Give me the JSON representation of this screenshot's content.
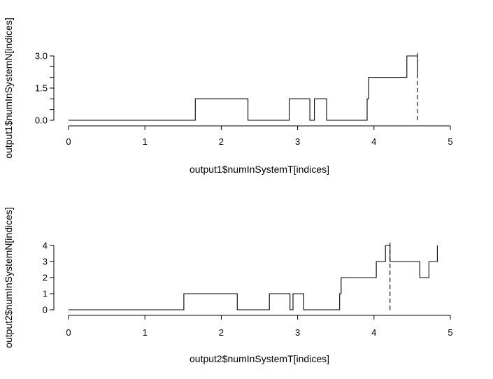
{
  "chart_data": [
    {
      "type": "line",
      "step": true,
      "xlabel": "output1$numInSystemT[indices]",
      "ylabel": "output1$numInSystemN[indices]",
      "xlim": [
        0,
        5
      ],
      "ylim": [
        0,
        3
      ],
      "x_ticks": [
        "0",
        "1",
        "2",
        "3",
        "4",
        "5"
      ],
      "y_ticks": [
        "0.0",
        "1.5",
        "3.0"
      ],
      "y_ticks_unlabeled": [
        0.5,
        1,
        2,
        2.5
      ],
      "grid": false,
      "legend": "none",
      "series": [
        {
          "points": [
            [
              0,
              0
            ],
            [
              1.66,
              0
            ],
            [
              1.66,
              1
            ],
            [
              2.35,
              1
            ],
            [
              2.35,
              0
            ],
            [
              2.89,
              0
            ],
            [
              2.89,
              1
            ],
            [
              3.16,
              1
            ],
            [
              3.16,
              0
            ],
            [
              3.22,
              0
            ],
            [
              3.22,
              1
            ],
            [
              3.38,
              1
            ],
            [
              3.38,
              0
            ],
            [
              3.91,
              0
            ],
            [
              3.91,
              1
            ],
            [
              3.93,
              1
            ],
            [
              3.93,
              2
            ],
            [
              4.43,
              2
            ],
            [
              4.43,
              3
            ],
            [
              4.57,
              3
            ],
            [
              4.57,
              2
            ]
          ]
        }
      ],
      "vline_x": 4.57
    },
    {
      "type": "line",
      "step": true,
      "xlabel": "output2$numInSystemT[indices]",
      "ylabel": "output2$numInSystemN[indices]",
      "xlim": [
        0,
        5
      ],
      "ylim": [
        0,
        4
      ],
      "x_ticks": [
        "0",
        "1",
        "2",
        "3",
        "4",
        "5"
      ],
      "y_ticks": [
        "0",
        "1",
        "2",
        "3",
        "4"
      ],
      "y_ticks_unlabeled": [],
      "grid": false,
      "legend": "none",
      "series": [
        {
          "points": [
            [
              0,
              0
            ],
            [
              1.51,
              0
            ],
            [
              1.51,
              1
            ],
            [
              2.21,
              1
            ],
            [
              2.21,
              0
            ],
            [
              2.63,
              0
            ],
            [
              2.63,
              1
            ],
            [
              2.9,
              1
            ],
            [
              2.9,
              0
            ],
            [
              2.94,
              0
            ],
            [
              2.94,
              1
            ],
            [
              3.08,
              1
            ],
            [
              3.08,
              0
            ],
            [
              3.55,
              0
            ],
            [
              3.55,
              1
            ],
            [
              3.57,
              1
            ],
            [
              3.57,
              2
            ],
            [
              4.03,
              2
            ],
            [
              4.03,
              3
            ],
            [
              4.15,
              3
            ],
            [
              4.15,
              4
            ],
            [
              4.21,
              4
            ],
            [
              4.21,
              3
            ],
            [
              4.6,
              3
            ],
            [
              4.6,
              2
            ],
            [
              4.72,
              2
            ],
            [
              4.72,
              3
            ],
            [
              4.83,
              3
            ],
            [
              4.83,
              4
            ]
          ]
        }
      ],
      "vline_x": 4.21
    }
  ]
}
